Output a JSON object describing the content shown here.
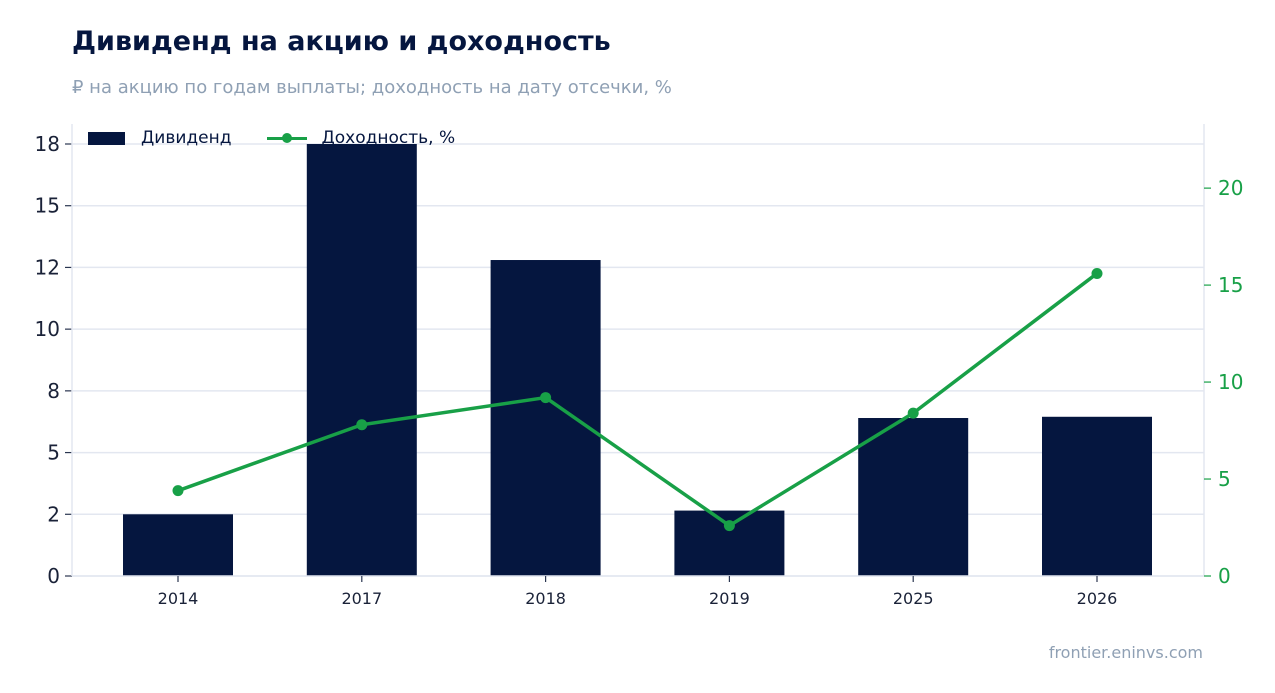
{
  "header": {
    "title": "Дивиденд на акцию и доходность",
    "subtitle": "₽ на акцию по годам выплаты; доходность на дату отсечки, %"
  },
  "footer": {
    "source": "frontier.eninvs.com"
  },
  "colors": {
    "bar": "#05163f",
    "line": "#18a047",
    "grid": "#e3e7f0",
    "axis_right": "#18a047"
  },
  "legend": [
    {
      "label": "Дивиденд",
      "kind": "bar"
    },
    {
      "label": "Доходность, %",
      "kind": "line"
    }
  ],
  "chart_data": {
    "type": "bar",
    "categories": [
      "2014",
      "2017",
      "2018",
      "2019",
      "2025",
      "2026"
    ],
    "series": [
      {
        "name": "Дивиденд",
        "type": "bar",
        "axis": "left",
        "values": [
          2.5,
          17.5,
          12.8,
          2.65,
          6.4,
          6.45
        ]
      },
      {
        "name": "Доходность, %",
        "type": "line",
        "axis": "right",
        "values": [
          4.4,
          7.8,
          9.2,
          2.6,
          8.4,
          15.6
        ]
      }
    ],
    "y_left": {
      "ylim": [
        0,
        17.5
      ],
      "tick_values": [
        0,
        2.5,
        5,
        7.5,
        10,
        12.5,
        15,
        17.5
      ],
      "tick_labels": [
        "0",
        "2",
        "5",
        "8",
        "10",
        "12",
        "15",
        "18"
      ]
    },
    "y_right": {
      "ylim": [
        0,
        23.1
      ],
      "ticks": [
        0,
        5,
        10,
        15,
        20
      ]
    },
    "grid": true,
    "legend_position": "top-left"
  }
}
